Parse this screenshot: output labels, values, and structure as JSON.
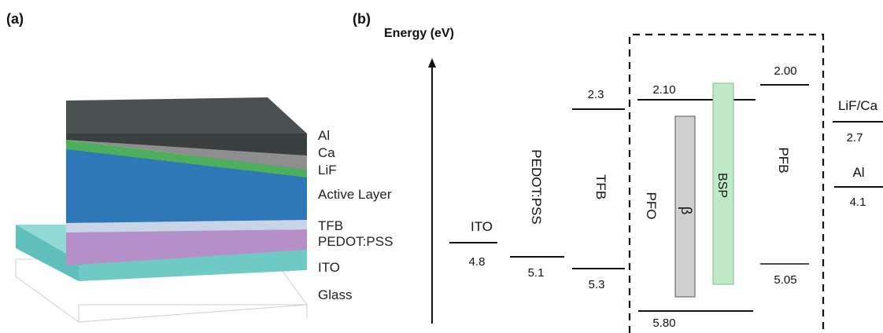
{
  "panel_a": {
    "label": "(a)",
    "layers": [
      "Al",
      "Ca",
      "LiF",
      "Active Layer",
      "TFB",
      "PEDOT:PSS",
      "ITO",
      "Glass"
    ]
  },
  "panel_b": {
    "label": "(b)",
    "axis_label": "Energy (eV)",
    "materials": {
      "ito": {
        "name": "ITO",
        "lower": "4.8"
      },
      "pedot": {
        "name": "PEDOT:PSS",
        "lower": "5.1"
      },
      "tfb": {
        "name": "TFB",
        "upper": "2.3",
        "lower": "5.3"
      },
      "pfo": {
        "name": "PFO",
        "upper": "2.10",
        "lower": "5.80"
      },
      "beta": {
        "name": "β"
      },
      "bsp": {
        "name": "BSP"
      },
      "pfb": {
        "name": "PFB",
        "upper": "2.00",
        "lower": "5.05"
      },
      "lifca": {
        "name": "LiF/Ca",
        "level": "2.7"
      },
      "al": {
        "name": "Al",
        "level": "4.1"
      }
    },
    "colors": {
      "beta_bar": "#cfcfcf",
      "bsp_bar": "#bfe8c6"
    }
  }
}
